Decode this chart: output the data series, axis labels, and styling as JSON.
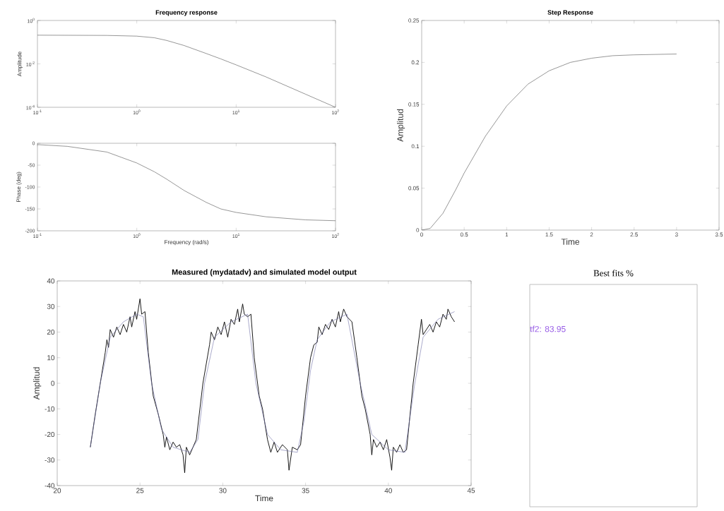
{
  "chart_data": [
    {
      "type": "line",
      "title": "Frequency response",
      "ylabel": "Amplitude",
      "log": "xy",
      "xlim": [
        0.1,
        100
      ],
      "ylim": [
        0.0001,
        1
      ],
      "xticks": [
        {
          "value": 0.1,
          "label": "10$^{-1}$"
        },
        {
          "value": 1,
          "label": "10$^{0}$"
        },
        {
          "value": 10,
          "label": "10$^{1}$"
        },
        {
          "value": 100,
          "label": "10$^{2}$"
        }
      ],
      "yticks": [
        {
          "value": 0.0001,
          "label": "10$^{-4}$"
        },
        {
          "value": 0.01,
          "label": "10$^{-2}$"
        },
        {
          "value": 1,
          "label": "10$^{0}$"
        }
      ],
      "x": [
        0.1,
        0.5,
        1,
        1.5,
        2,
        3,
        5,
        7,
        10,
        20,
        50,
        100
      ],
      "series": [
        {
          "color": "#505050",
          "values": [
            0.21,
            0.205,
            0.19,
            0.16,
            0.12,
            0.07,
            0.03,
            0.017,
            0.009,
            0.0025,
            0.0004,
            0.0001
          ]
        }
      ]
    },
    {
      "type": "line",
      "xlabel": "Frequency (rad/s)",
      "ylabel": "Phase (deg)",
      "log": "x",
      "xlim": [
        0.1,
        100
      ],
      "ylim": [
        -200,
        0
      ],
      "xticks": [
        {
          "value": 0.1,
          "label": "10$^{-1}$"
        },
        {
          "value": 1,
          "label": "10$^{0}$"
        },
        {
          "value": 10,
          "label": "10$^{1}$"
        },
        {
          "value": 100,
          "label": "10$^{2}$"
        }
      ],
      "yticks": [
        -200,
        -150,
        -100,
        -50,
        0
      ],
      "x": [
        0.1,
        0.2,
        0.5,
        1,
        1.5,
        2,
        3,
        5,
        7,
        10,
        20,
        50,
        100
      ],
      "series": [
        {
          "color": "#505050",
          "values": [
            -3,
            -7,
            -20,
            -45,
            -65,
            -82,
            -108,
            -135,
            -150,
            -158,
            -168,
            -175,
            -177
          ]
        }
      ]
    },
    {
      "type": "line",
      "title": "Step Response",
      "xlabel": "Time",
      "ylabel": "Amplitud",
      "xlim": [
        0,
        3.5
      ],
      "ylim": [
        0,
        0.25
      ],
      "xticks": [
        0,
        0.5,
        1,
        1.5,
        2,
        2.5,
        3,
        3.5
      ],
      "yticks": [
        0,
        0.05,
        0.1,
        0.15,
        0.2,
        0.25
      ],
      "x": [
        0,
        0.1,
        0.25,
        0.4,
        0.5,
        0.75,
        1,
        1.25,
        1.5,
        1.75,
        2,
        2.25,
        2.5,
        3
      ],
      "series": [
        {
          "color": "#505050",
          "values": [
            0,
            0.002,
            0.02,
            0.048,
            0.068,
            0.112,
            0.148,
            0.174,
            0.19,
            0.2,
            0.205,
            0.208,
            0.209,
            0.21
          ]
        }
      ]
    },
    {
      "type": "line",
      "title": "Measured (mydatadv) and simulated model output",
      "xlabel": "Time",
      "ylabel": "Amplitud",
      "xlim": [
        20,
        45
      ],
      "ylim": [
        -40,
        40
      ],
      "xticks": [
        20,
        25,
        30,
        35,
        40,
        45
      ],
      "yticks": [
        -40,
        -30,
        -20,
        -10,
        0,
        10,
        20,
        30,
        40
      ],
      "series": [
        {
          "color": "#000000",
          "x": [
            22.0,
            22.3,
            22.6,
            22.9,
            23.0,
            23.1,
            23.2,
            23.4,
            23.6,
            23.8,
            24.0,
            24.2,
            24.4,
            24.5,
            24.7,
            24.8,
            25.0,
            25.1,
            25.3,
            25.5,
            25.8,
            26.1,
            26.4,
            26.5,
            26.6,
            26.8,
            27.0,
            27.2,
            27.4,
            27.6,
            27.7,
            27.8,
            28.0,
            28.2,
            28.4,
            28.8,
            29.2,
            29.3,
            29.5,
            29.7,
            29.9,
            30.1,
            30.3,
            30.5,
            30.7,
            30.9,
            31.0,
            31.2,
            31.3,
            31.5,
            31.7,
            31.9,
            32.2,
            32.4,
            32.7,
            32.9,
            33.1,
            33.3,
            33.6,
            33.9,
            34.0,
            34.2,
            34.5,
            34.7,
            35.0,
            35.3,
            35.5,
            35.7,
            35.8,
            36.0,
            36.2,
            36.4,
            36.6,
            36.8,
            37.0,
            37.1,
            37.3,
            37.5,
            37.8,
            38.1,
            38.4,
            38.6,
            38.9,
            39.0,
            39.1,
            39.3,
            39.5,
            39.7,
            39.9,
            40.1,
            40.2,
            40.3,
            40.5,
            40.7,
            40.9,
            41.1,
            41.5,
            41.8,
            42.0,
            42.1,
            42.3,
            42.5,
            42.7,
            42.9,
            43.1,
            43.3,
            43.5,
            43.6,
            43.8,
            44.0
          ],
          "values": [
            -25,
            -12,
            0,
            12,
            17,
            14,
            21,
            18,
            22,
            19,
            23,
            20,
            26,
            22,
            28,
            25,
            33,
            27,
            28,
            12,
            -5,
            -12,
            -20,
            -25,
            -21,
            -26,
            -23,
            -25,
            -24,
            -28,
            -35,
            -25,
            -28,
            -25,
            -22,
            0,
            15,
            20,
            17,
            22,
            19,
            24,
            18,
            25,
            23,
            29,
            24,
            31,
            27,
            26,
            27,
            10,
            -5,
            -10,
            -22,
            -27,
            -23,
            -27,
            -24,
            -26,
            -34,
            -25,
            -26,
            -24,
            -5,
            10,
            15,
            16,
            22,
            19,
            23,
            21,
            25,
            22,
            28,
            24,
            29,
            26,
            24,
            10,
            -5,
            -10,
            -20,
            -28,
            -22,
            -25,
            -23,
            -26,
            -22,
            -29,
            -34,
            -25,
            -27,
            -24,
            -27,
            -26,
            0,
            15,
            25,
            19,
            21,
            23,
            20,
            24,
            22,
            27,
            25,
            29,
            26,
            24
          ]
        },
        {
          "color": "#7070a8",
          "x": [
            22,
            22.6,
            23.2,
            24,
            24.8,
            25.2,
            25.7,
            26.3,
            27,
            28,
            28.5,
            28.9,
            29.5,
            30.5,
            31.5,
            32,
            32.7,
            33.5,
            34.5,
            34.9,
            35.3,
            35.7,
            36.5,
            37.5,
            38.3,
            39,
            40,
            41,
            41.6,
            42.1,
            43,
            44
          ],
          "values": [
            -25,
            0,
            18,
            24,
            27,
            26,
            0,
            -18,
            -25,
            -27,
            -22,
            0,
            18,
            24,
            27,
            0,
            -20,
            -26,
            -27,
            -15,
            5,
            17,
            24,
            27,
            0,
            -20,
            -26,
            -27,
            0,
            18,
            25,
            28
          ]
        }
      ]
    },
    {
      "type": "other",
      "title": "Best fits %",
      "annotations": [
        "tf2: 83.95"
      ]
    }
  ]
}
